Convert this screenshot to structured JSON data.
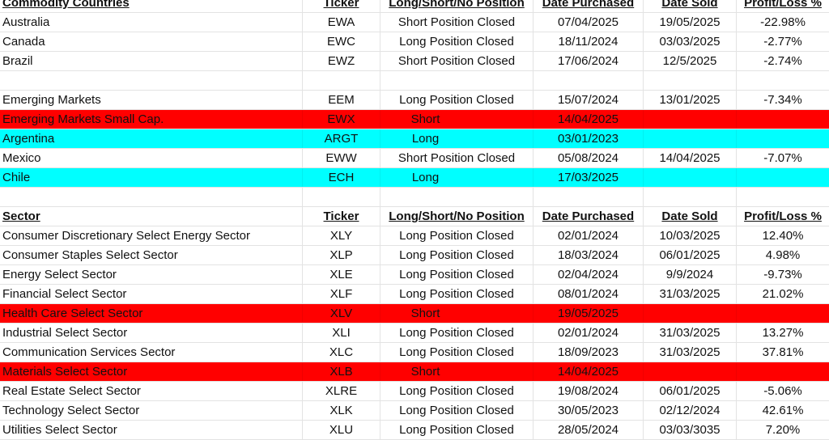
{
  "colors": {
    "short": "#ff0000",
    "long": "#00ffff"
  },
  "sections": [
    {
      "header": [
        "Commodity Countries",
        "Ticker",
        "Long/Short/No Position",
        "Date Purchased",
        "Date Sold",
        "Profit/Loss %"
      ],
      "rows": [
        {
          "cells": [
            "Australia",
            "EWA",
            "Short Position Closed",
            "07/04/2025",
            "19/05/2025",
            "-22.98%"
          ],
          "highlight": ""
        },
        {
          "cells": [
            "Canada",
            "EWC",
            "Long Position Closed",
            "18/11/2024",
            "03/03/2025",
            "-2.77%"
          ],
          "highlight": ""
        },
        {
          "cells": [
            "Brazil",
            "EWZ",
            "Short Position Closed",
            "17/06/2024",
            "12/5/2025",
            "-2.74%"
          ],
          "highlight": ""
        },
        {
          "cells": [
            "",
            "",
            "",
            "",
            "",
            ""
          ],
          "highlight": ""
        },
        {
          "cells": [
            "Emerging Markets",
            "EEM",
            "Long Position Closed",
            "15/07/2024",
            "13/01/2025",
            "-7.34%"
          ],
          "highlight": ""
        },
        {
          "cells": [
            "Emerging Markets Small Cap.",
            "EWX",
            "Short",
            "14/04/2025",
            "",
            ""
          ],
          "highlight": "red"
        },
        {
          "cells": [
            "Argentina",
            "ARGT",
            "Long",
            "03/01/2023",
            "",
            ""
          ],
          "highlight": "cyan"
        },
        {
          "cells": [
            "Mexico",
            "EWW",
            "Short Position Closed",
            "05/08/2024",
            "14/04/2025",
            "-7.07%"
          ],
          "highlight": ""
        },
        {
          "cells": [
            "Chile",
            "ECH",
            "Long",
            "17/03/2025",
            "",
            ""
          ],
          "highlight": "cyan"
        },
        {
          "cells": [
            "",
            "",
            "",
            "",
            "",
            ""
          ],
          "highlight": ""
        }
      ]
    },
    {
      "header": [
        "Sector",
        "Ticker",
        "Long/Short/No Position",
        "Date Purchased",
        "Date Sold",
        "Profit/Loss %"
      ],
      "rows": [
        {
          "cells": [
            "Consumer Discretionary Select Energy Sector",
            "XLY",
            "Long Position Closed",
            "02/01/2024",
            "10/03/2025",
            "12.40%"
          ],
          "highlight": ""
        },
        {
          "cells": [
            "Consumer Staples Select Sector",
            "XLP",
            "Long Position Closed",
            "18/03/2024",
            "06/01/2025",
            "4.98%"
          ],
          "highlight": ""
        },
        {
          "cells": [
            "Energy Select Sector",
            "XLE",
            "Long Position Closed",
            "02/04/2024",
            "9/9/2024",
            "-9.73%"
          ],
          "highlight": ""
        },
        {
          "cells": [
            "Financial Select Sector",
            "XLF",
            "Long Position Closed",
            "08/01/2024",
            "31/03/2025",
            "21.02%"
          ],
          "highlight": ""
        },
        {
          "cells": [
            "Health Care Select Sector",
            "XLV",
            "Short",
            "19/05/2025",
            "",
            ""
          ],
          "highlight": "red"
        },
        {
          "cells": [
            "Industrial Select Sector",
            "XLI",
            "Long Position Closed",
            "02/01/2024",
            "31/03/2025",
            "13.27%"
          ],
          "highlight": ""
        },
        {
          "cells": [
            "Communication Services Sector",
            "XLC",
            "Long Position Closed",
            "18/09/2023",
            "31/03/2025",
            "37.81%"
          ],
          "highlight": ""
        },
        {
          "cells": [
            "Materials Select Sector",
            "XLB",
            "Short",
            "14/04/2025",
            "",
            ""
          ],
          "highlight": "red"
        },
        {
          "cells": [
            "Real Estate Select Sector",
            "XLRE",
            "Long Position Closed",
            "19/08/2024",
            "06/01/2025",
            "-5.06%"
          ],
          "highlight": ""
        },
        {
          "cells": [
            "Technology Select Sector",
            "XLK",
            "Long Position Closed",
            "30/05/2023",
            "02/12/2024",
            "42.61%"
          ],
          "highlight": ""
        },
        {
          "cells": [
            "Utilities Select Sector",
            "XLU",
            "Long Position Closed",
            "28/05/2024",
            "03/03/3035",
            "7.20%"
          ],
          "highlight": ""
        }
      ]
    }
  ]
}
